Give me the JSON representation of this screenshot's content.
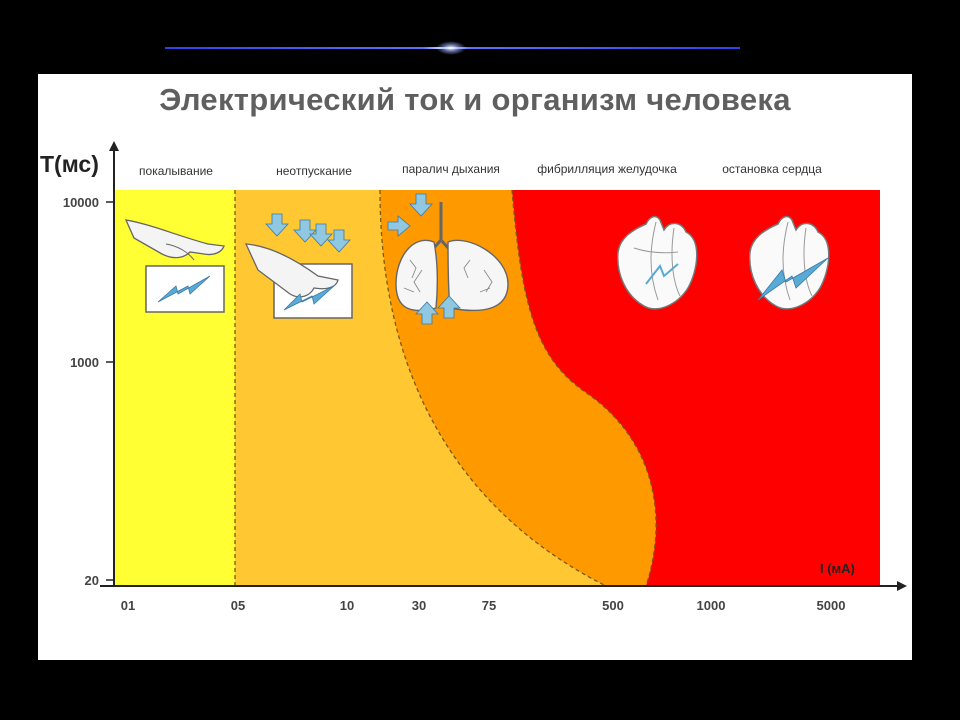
{
  "slide": {
    "title": "Электрический ток и организм человека"
  },
  "chart_data": {
    "type": "area",
    "title": "Электрический ток и организм человека",
    "ylabel": "T(мс)",
    "xlabel": "I (мА)",
    "x_ticks": [
      "01",
      "05",
      "10",
      "30",
      "75",
      "500",
      "1000",
      "5000"
    ],
    "y_ticks": [
      "10000",
      "1000",
      "20"
    ],
    "y_scale": "log",
    "zones": [
      {
        "name": "покалывание",
        "color": "#ffff33",
        "icon": "hand-touching-plate-icon"
      },
      {
        "name": "неотпускание",
        "color": "#ffc832",
        "icon": "hand-gripping-plate-icon"
      },
      {
        "name": "паралич дыхания",
        "color": "#ff9900",
        "icon": "lungs-icon"
      },
      {
        "name": "фибрилляция желудочка",
        "color": "#ff0000",
        "icon": "heart-icon"
      },
      {
        "name": "остановка сердца",
        "color": "#ff0000",
        "icon": "heart-shock-icon"
      }
    ],
    "grid": false,
    "legend": "top-labels"
  }
}
